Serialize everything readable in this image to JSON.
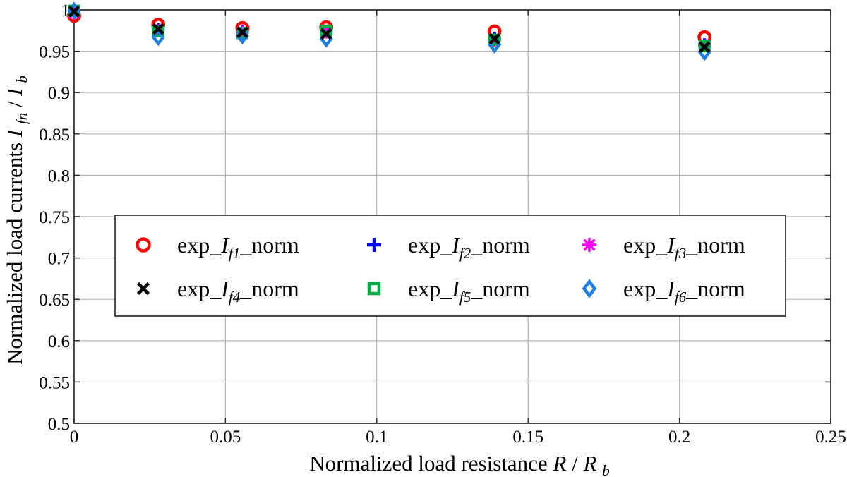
{
  "chart_data": {
    "type": "scatter",
    "xlabel_text": "Normalized load resistance ",
    "xlabel_math_main": "R",
    "xlabel_math_sep": "/",
    "xlabel_math_den": "R",
    "xlabel_math_den_sub": "b",
    "ylabel_text": "Normalized load currents ",
    "ylabel_math_main": "I",
    "ylabel_math_sub": "fn",
    "ylabel_math_sep": "/",
    "ylabel_math_den": "I",
    "ylabel_math_den_sub": "b",
    "xlim": [
      0,
      0.25
    ],
    "ylim": [
      0.5,
      1
    ],
    "x_ticks": [
      0,
      0.05,
      0.1,
      0.15,
      0.2,
      0.25
    ],
    "x_tick_labels": [
      "0",
      "0.05",
      "0.1",
      "0.15",
      "0.2",
      "0.25"
    ],
    "y_ticks": [
      0.5,
      0.55,
      0.6,
      0.65,
      0.7,
      0.75,
      0.8,
      0.85,
      0.9,
      0.95,
      1
    ],
    "y_tick_labels": [
      "0.5",
      "0.55",
      "0.6",
      "0.65",
      "0.7",
      "0.75",
      "0.8",
      "0.85",
      "0.9",
      "0.95",
      "1"
    ],
    "grid": true,
    "legend_position": "center",
    "x": [
      0,
      0.0278,
      0.0556,
      0.0833,
      0.1389,
      0.2083
    ],
    "series": [
      {
        "name_prefix": "exp_",
        "name_main": "I",
        "name_sub": "f1",
        "name_suffix": "_norm",
        "marker": "circle",
        "color": "#ff0000",
        "values": [
          0.993,
          0.982,
          0.978,
          0.979,
          0.974,
          0.967
        ]
      },
      {
        "name_prefix": "exp_",
        "name_main": "I",
        "name_sub": "f2",
        "name_suffix": "_norm",
        "marker": "plus",
        "color": "#0000ff",
        "values": [
          0.997,
          0.976,
          0.974,
          0.974,
          0.966,
          0.958
        ]
      },
      {
        "name_prefix": "exp_",
        "name_main": "I",
        "name_sub": "f3",
        "name_suffix": "_norm",
        "marker": "asterisk",
        "color": "#ff00ff",
        "values": [
          0.996,
          0.975,
          0.973,
          0.973,
          0.963,
          0.957
        ]
      },
      {
        "name_prefix": "exp_",
        "name_main": "I",
        "name_sub": "f4",
        "name_suffix": "_norm",
        "marker": "x",
        "color": "#000000",
        "values": [
          0.998,
          0.977,
          0.973,
          0.971,
          0.965,
          0.955
        ]
      },
      {
        "name_prefix": "exp_",
        "name_main": "I",
        "name_sub": "f5",
        "name_suffix": "_norm",
        "marker": "square",
        "color": "#00aa44",
        "values": [
          0.999,
          0.974,
          0.972,
          0.975,
          0.964,
          0.956
        ]
      },
      {
        "name_prefix": "exp_",
        "name_main": "I",
        "name_sub": "f6",
        "name_suffix": "_norm",
        "marker": "diamond",
        "color": "#1f7fe0",
        "values": [
          0.999,
          0.967,
          0.969,
          0.965,
          0.958,
          0.949
        ]
      }
    ]
  }
}
